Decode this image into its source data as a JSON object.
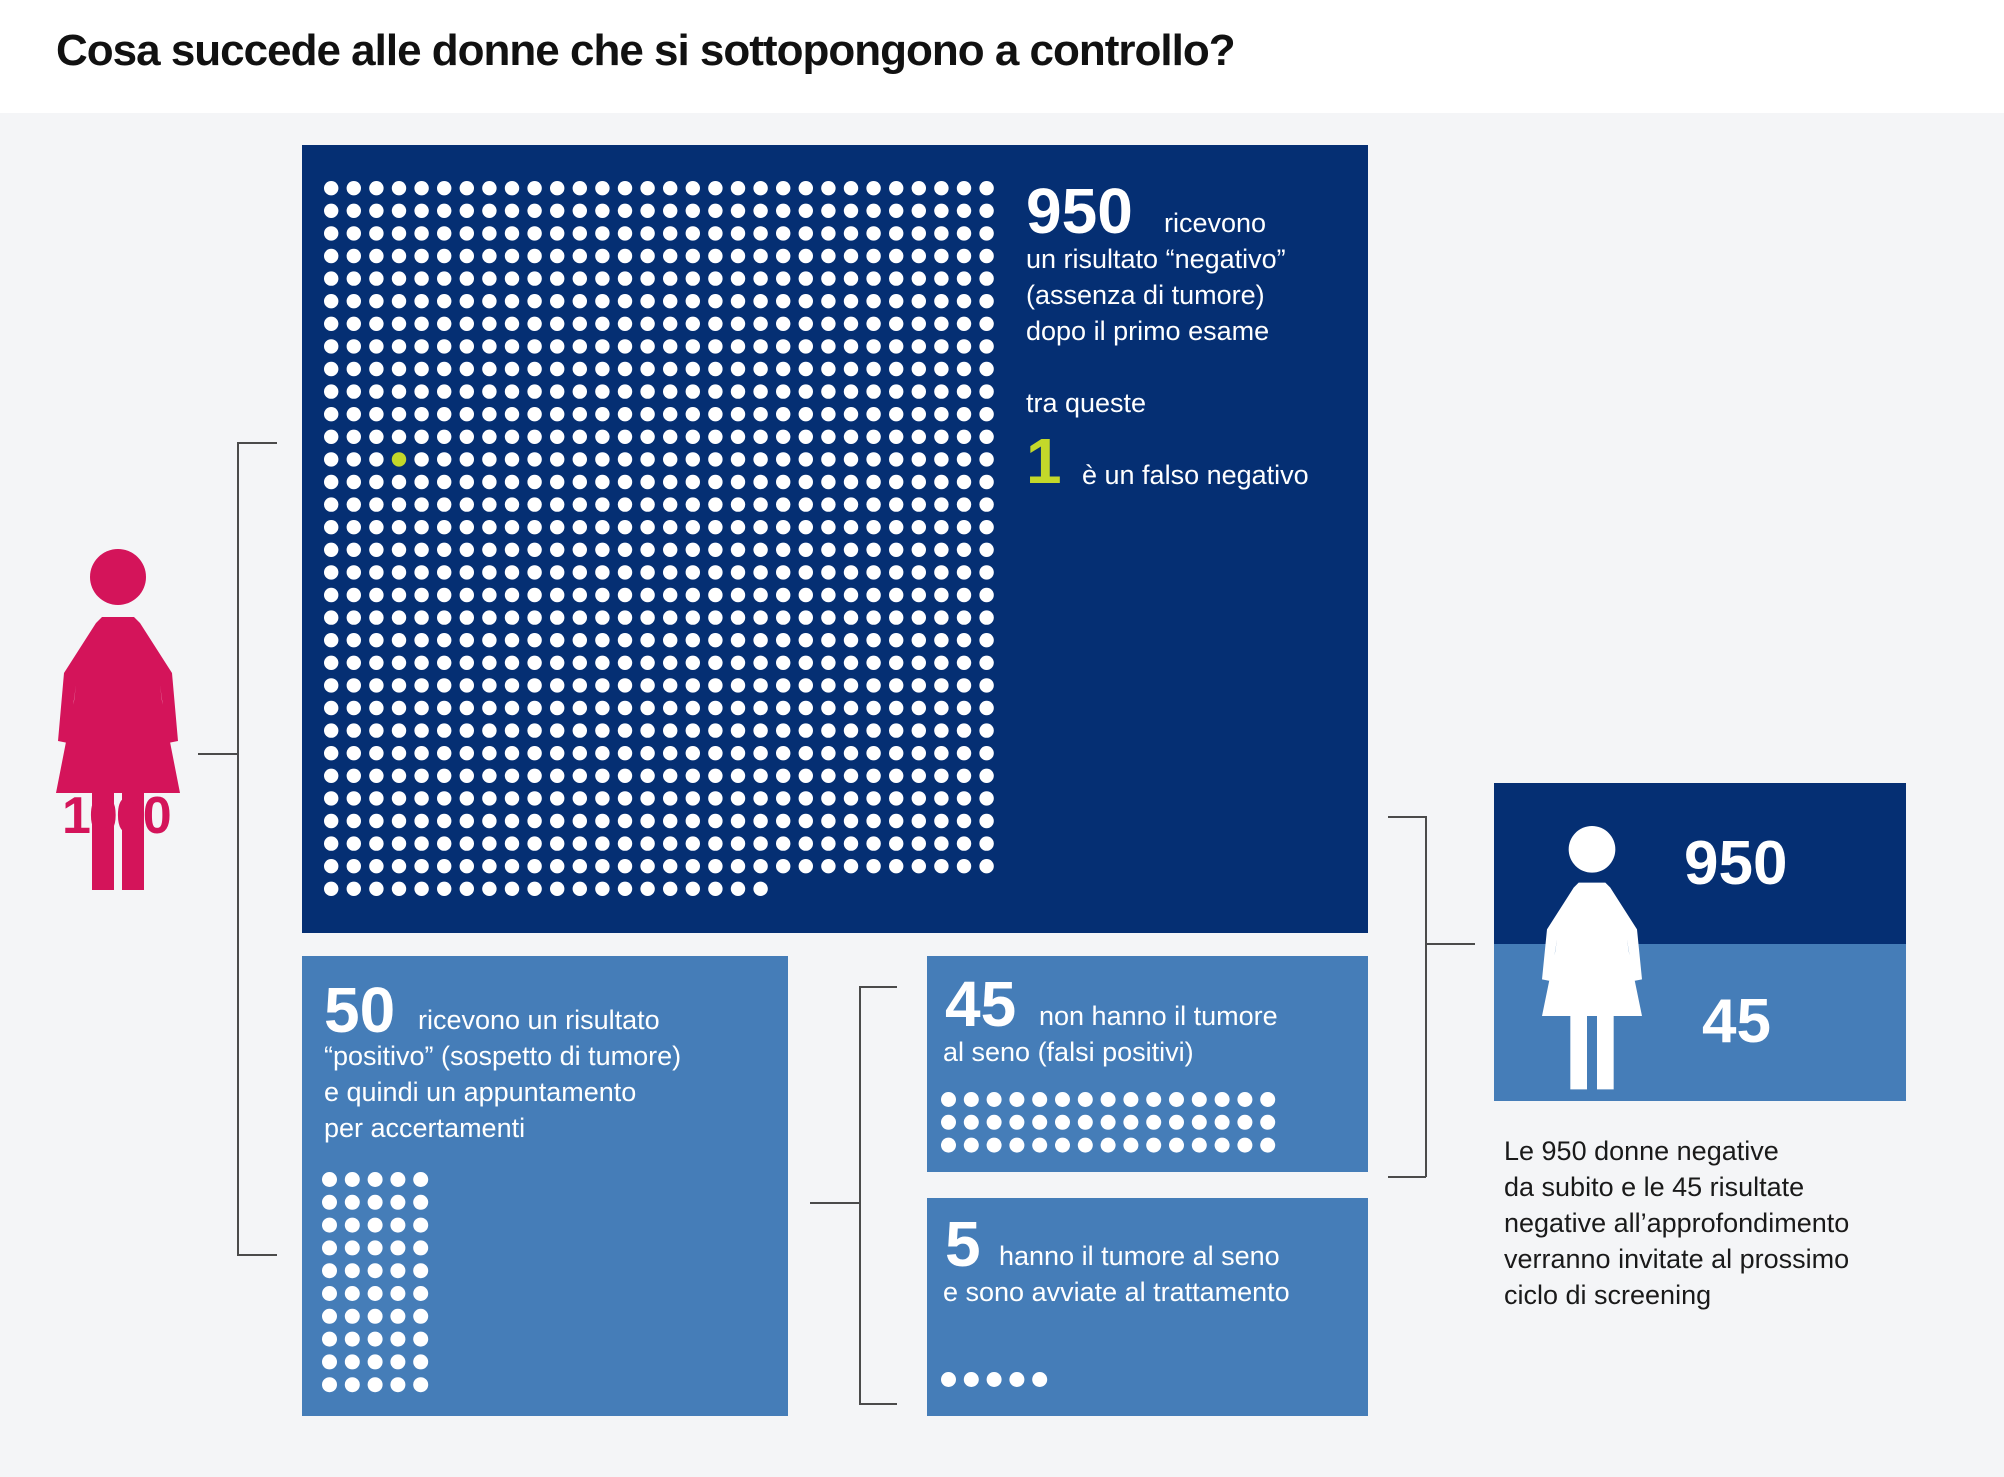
{
  "title": "Cosa succede alle donne che si sottopongono a controllo?",
  "colors": {
    "dark_blue": "#052f73",
    "mid_blue": "#457db8",
    "magenta": "#d4145a",
    "highlight_green": "#c3d82a",
    "dot_white": "#ffffff",
    "bracket_gray": "#4b4b4b"
  },
  "start": {
    "icon": "woman-icon",
    "count": "1000"
  },
  "negative_box": {
    "count": "950",
    "line1": "ricevono",
    "line2": "un risultato “negativo”",
    "line3": "(assenza di tumore)",
    "line4": "dopo il primo esame",
    "subheading": "tra queste",
    "false_negative_count": "1",
    "false_negative_text": "è un falso negativo",
    "dots": 950,
    "highlighted_dot_index": 363
  },
  "positive_box": {
    "count": "50",
    "line1": "ricevono un risultato",
    "line2": "“positivo” (sospetto di tumore)",
    "line3": "e quindi un appuntamento",
    "line4": "per accertamenti",
    "dots": 50
  },
  "false_positive_box": {
    "count": "45",
    "line1": "non hanno il tumore",
    "line2": "al seno (falsi positivi)",
    "dots": 45
  },
  "cancer_box": {
    "count": "5",
    "line1": "hanno il tumore al seno",
    "line2": "e sono avviate al trattamento",
    "dots": 5
  },
  "summary": {
    "icon": "woman-icon",
    "top_count": "950",
    "bottom_count": "45",
    "caption_lines": [
      "Le 950 donne negative",
      "da subito e le 45 risultate",
      "negative all’approfondimento",
      "verranno invitate al prossimo",
      "ciclo di screening"
    ]
  }
}
